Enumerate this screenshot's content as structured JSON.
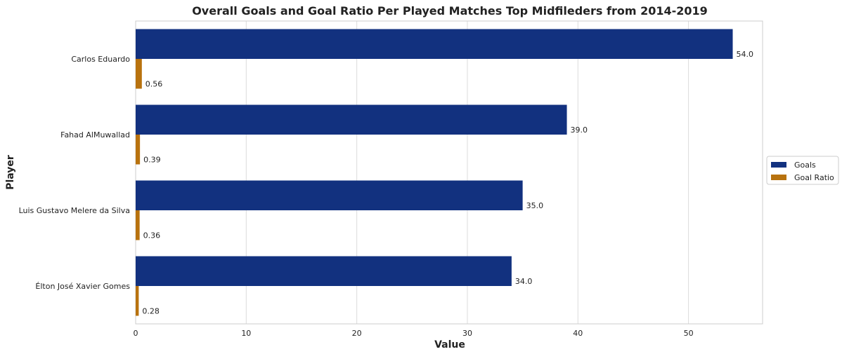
{
  "chart_data": {
    "type": "bar",
    "orientation": "horizontal",
    "title": "Overall Goals and Goal Ratio Per Played Matches Top Midfileders from 2014-2019",
    "xlabel": "Value",
    "ylabel": "Player",
    "xlim": [
      0,
      56.7
    ],
    "xticks": [
      0,
      10,
      20,
      30,
      40,
      50
    ],
    "grid": true,
    "legend_position": "center-right",
    "categories": [
      "Carlos Eduardo",
      "Fahad AlMuwallad",
      "Luis Gustavo Melere da Silva",
      "Élton José Xavier Gomes"
    ],
    "series": [
      {
        "name": "Goals",
        "color": "#12317f",
        "values": [
          54.0,
          39.0,
          35.0,
          34.0
        ],
        "labels": [
          "54.0",
          "39.0",
          "35.0",
          "34.0"
        ]
      },
      {
        "name": "Goal Ratio",
        "color": "#b8720e",
        "values": [
          0.56,
          0.39,
          0.36,
          0.28
        ],
        "labels": [
          "0.56",
          "0.39",
          "0.36",
          "0.28"
        ]
      }
    ]
  }
}
